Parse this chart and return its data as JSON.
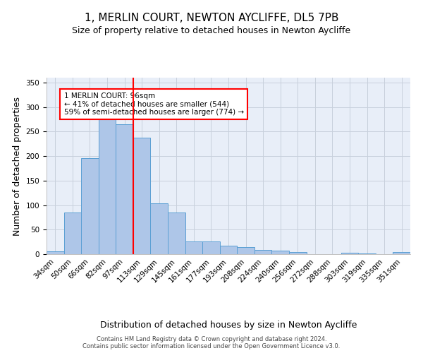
{
  "title1": "1, MERLIN COURT, NEWTON AYCLIFFE, DL5 7PB",
  "title2": "Size of property relative to detached houses in Newton Aycliffe",
  "xlabel": "Distribution of detached houses by size in Newton Aycliffe",
  "ylabel": "Number of detached properties",
  "footnote": "Contains HM Land Registry data © Crown copyright and database right 2024.\nContains public sector information licensed under the Open Government Licence v3.0.",
  "bins": [
    "34sqm",
    "50sqm",
    "66sqm",
    "82sqm",
    "97sqm",
    "113sqm",
    "129sqm",
    "145sqm",
    "161sqm",
    "177sqm",
    "193sqm",
    "208sqm",
    "224sqm",
    "240sqm",
    "256sqm",
    "272sqm",
    "288sqm",
    "303sqm",
    "319sqm",
    "335sqm",
    "351sqm"
  ],
  "bar_heights": [
    6,
    85,
    196,
    275,
    265,
    237,
    104,
    85,
    26,
    26,
    18,
    15,
    8,
    7,
    4,
    0,
    0,
    3,
    2,
    0,
    4
  ],
  "bar_color": "#aec6e8",
  "bar_edge_color": "#5a9fd4",
  "vline_color": "red",
  "annotation_text": "1 MERLIN COURT: 96sqm\n← 41% of detached houses are smaller (544)\n59% of semi-detached houses are larger (774) →",
  "annotation_box_color": "white",
  "annotation_box_edge": "red",
  "ylim": [
    0,
    360
  ],
  "yticks": [
    0,
    50,
    100,
    150,
    200,
    250,
    300,
    350
  ],
  "grid_color": "#c8d0dc",
  "bg_color": "#e8eef8",
  "title1_fontsize": 11,
  "title2_fontsize": 9,
  "xlabel_fontsize": 9,
  "ylabel_fontsize": 9,
  "tick_fontsize": 7.5,
  "annotation_fontsize": 7.5,
  "footnote_fontsize": 6
}
